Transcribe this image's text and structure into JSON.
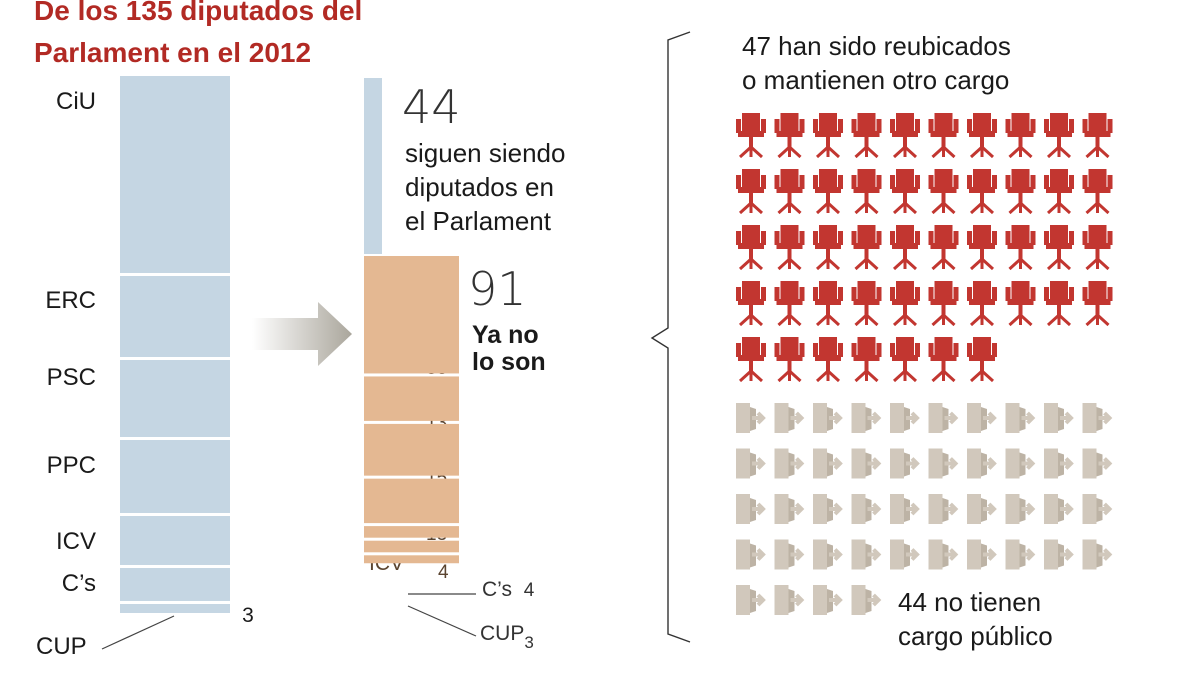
{
  "title": {
    "line1": "De los 135 diputados del",
    "line2": "Parlament en el 2012"
  },
  "chart_data": {
    "type": "bar",
    "title": "De los 135 diputados del Parlament en el 2012",
    "categories": [
      "CiU",
      "ERC",
      "PSC",
      "PPC",
      "ICV",
      "C’s",
      "CUP"
    ],
    "series": [
      {
        "values": [
          50,
          21,
          20,
          19,
          13,
          9,
          3
        ]
      },
      {
        "values": [
          33,
          13,
          15,
          13,
          4,
          4,
          3
        ]
      }
    ],
    "totals": {
      "siguen": 44,
      "ya_no": 91,
      "reubicados": 47,
      "sin_cargo": 44
    },
    "colors": {
      "before": "#c5d6e3",
      "after": "#e4b892",
      "reubicados": "#c23630",
      "sin_cargo": "#d1c8bc"
    }
  },
  "labels": {
    "cup_small": "3",
    "cs_after": "C’s",
    "cs_after_num": "4",
    "cup_after": "CUP",
    "cup_after_num": "3"
  },
  "siguen": {
    "number": "44",
    "line1": "siguen siendo",
    "line2": "diputados en",
    "line3": "el Parlament"
  },
  "yano": {
    "number": "91",
    "line1": "Ya no",
    "line2": "lo son"
  },
  "reubicados": {
    "line1": "47 han sido reubicados",
    "line2": "o mantienen otro cargo",
    "icon": "chair-icon"
  },
  "sin_cargo": {
    "line1": "44 no tienen",
    "line2": "cargo público",
    "icon": "exit-door-icon"
  }
}
